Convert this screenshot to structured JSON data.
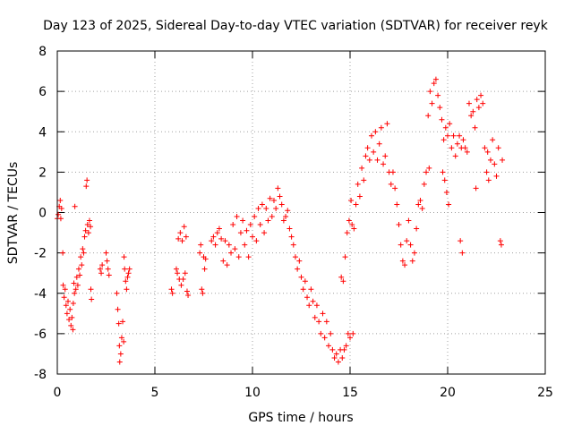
{
  "chart_data": {
    "type": "scatter",
    "title": "Day 123 of 2025, Sidereal Day-to-day VTEC variation (SDTVAR) for receiver reyk",
    "xlabel": "GPS time / hours",
    "ylabel": "SDTVAR / TECUs",
    "xlim": [
      0,
      25
    ],
    "ylim": [
      -8,
      8
    ],
    "xticks": [
      0,
      5,
      10,
      15,
      20,
      25
    ],
    "yticks": [
      -8,
      -6,
      -4,
      -2,
      0,
      2,
      4,
      6,
      8
    ],
    "grid": true,
    "marker": "+",
    "color": "#ff0000",
    "series": [
      {
        "name": "SDTVAR",
        "points": [
          [
            0.0,
            -0.3
          ],
          [
            0.05,
            -0.1
          ],
          [
            0.1,
            0.3
          ],
          [
            0.15,
            0.6
          ],
          [
            0.18,
            -0.3
          ],
          [
            0.22,
            0.2
          ],
          [
            0.28,
            -2.0
          ],
          [
            0.3,
            -3.6
          ],
          [
            0.35,
            -4.2
          ],
          [
            0.4,
            -3.8
          ],
          [
            0.45,
            -4.6
          ],
          [
            0.5,
            -5.0
          ],
          [
            0.55,
            -4.4
          ],
          [
            0.6,
            -5.3
          ],
          [
            0.65,
            -4.8
          ],
          [
            0.7,
            -5.6
          ],
          [
            0.75,
            -5.2
          ],
          [
            0.8,
            -5.8
          ],
          [
            0.82,
            -4.5
          ],
          [
            0.85,
            -3.5
          ],
          [
            0.88,
            -4.0
          ],
          [
            0.9,
            0.3
          ],
          [
            0.95,
            -3.8
          ],
          [
            1.0,
            -3.2
          ],
          [
            1.05,
            -3.6
          ],
          [
            1.1,
            -2.8
          ],
          [
            1.15,
            -3.1
          ],
          [
            1.2,
            -2.2
          ],
          [
            1.25,
            -2.6
          ],
          [
            1.3,
            -1.8
          ],
          [
            1.35,
            -2.0
          ],
          [
            1.4,
            -1.2
          ],
          [
            1.45,
            -0.9
          ],
          [
            1.48,
            1.3
          ],
          [
            1.52,
            1.6
          ],
          [
            1.55,
            -0.6
          ],
          [
            1.6,
            -1.0
          ],
          [
            1.65,
            -0.4
          ],
          [
            1.7,
            -0.7
          ],
          [
            1.72,
            -3.8
          ],
          [
            1.75,
            -4.3
          ],
          [
            2.2,
            -2.8
          ],
          [
            2.25,
            -3.0
          ],
          [
            2.3,
            -2.6
          ],
          [
            2.5,
            -2.0
          ],
          [
            2.55,
            -2.4
          ],
          [
            2.6,
            -2.8
          ],
          [
            2.65,
            -3.1
          ],
          [
            3.05,
            -4.0
          ],
          [
            3.1,
            -4.8
          ],
          [
            3.15,
            -5.5
          ],
          [
            3.18,
            -6.6
          ],
          [
            3.2,
            -7.4
          ],
          [
            3.25,
            -7.0
          ],
          [
            3.3,
            -6.2
          ],
          [
            3.35,
            -5.4
          ],
          [
            3.4,
            -6.4
          ],
          [
            3.42,
            -2.2
          ],
          [
            3.45,
            -2.8
          ],
          [
            3.5,
            -3.4
          ],
          [
            3.55,
            -3.8
          ],
          [
            3.6,
            -3.2
          ],
          [
            3.65,
            -3.0
          ],
          [
            3.7,
            -2.8
          ],
          [
            5.85,
            -3.8
          ],
          [
            5.9,
            -4.0
          ],
          [
            6.1,
            -2.8
          ],
          [
            6.15,
            -3.0
          ],
          [
            6.2,
            -1.3
          ],
          [
            6.25,
            -3.3
          ],
          [
            6.3,
            -1.0
          ],
          [
            6.35,
            -3.6
          ],
          [
            6.4,
            -1.4
          ],
          [
            6.45,
            -3.3
          ],
          [
            6.5,
            -0.7
          ],
          [
            6.55,
            -3.0
          ],
          [
            6.6,
            -1.2
          ],
          [
            6.65,
            -3.9
          ],
          [
            6.7,
            -4.1
          ],
          [
            7.3,
            -2.0
          ],
          [
            7.35,
            -1.6
          ],
          [
            7.4,
            -3.8
          ],
          [
            7.45,
            -4.0
          ],
          [
            7.5,
            -2.2
          ],
          [
            7.55,
            -2.8
          ],
          [
            7.6,
            -2.3
          ],
          [
            7.9,
            -1.4
          ],
          [
            8.0,
            -1.2
          ],
          [
            8.1,
            -1.6
          ],
          [
            8.2,
            -1.0
          ],
          [
            8.3,
            -0.8
          ],
          [
            8.4,
            -1.3
          ],
          [
            8.5,
            -2.4
          ],
          [
            8.6,
            -1.4
          ],
          [
            8.7,
            -2.6
          ],
          [
            8.8,
            -1.6
          ],
          [
            8.9,
            -2.0
          ],
          [
            9.0,
            -0.6
          ],
          [
            9.1,
            -1.8
          ],
          [
            9.2,
            -0.2
          ],
          [
            9.3,
            -2.2
          ],
          [
            9.4,
            -1.0
          ],
          [
            9.5,
            -0.4
          ],
          [
            9.6,
            -1.6
          ],
          [
            9.7,
            -0.9
          ],
          [
            9.8,
            -2.2
          ],
          [
            9.9,
            -0.6
          ],
          [
            10.0,
            -1.2
          ],
          [
            10.1,
            -0.2
          ],
          [
            10.2,
            -1.4
          ],
          [
            10.3,
            0.2
          ],
          [
            10.4,
            -0.6
          ],
          [
            10.5,
            0.4
          ],
          [
            10.6,
            -1.0
          ],
          [
            10.7,
            0.2
          ],
          [
            10.8,
            -0.4
          ],
          [
            10.9,
            0.7
          ],
          [
            11.0,
            -0.2
          ],
          [
            11.1,
            0.6
          ],
          [
            11.2,
            0.2
          ],
          [
            11.3,
            1.2
          ],
          [
            11.4,
            0.8
          ],
          [
            11.5,
            0.4
          ],
          [
            11.6,
            -0.4
          ],
          [
            11.7,
            -0.2
          ],
          [
            11.8,
            0.1
          ],
          [
            11.9,
            -0.8
          ],
          [
            12.0,
            -1.2
          ],
          [
            12.1,
            -1.6
          ],
          [
            12.2,
            -2.2
          ],
          [
            12.3,
            -2.8
          ],
          [
            12.4,
            -2.4
          ],
          [
            12.5,
            -3.2
          ],
          [
            12.6,
            -3.8
          ],
          [
            12.7,
            -3.4
          ],
          [
            12.8,
            -4.2
          ],
          [
            12.9,
            -4.6
          ],
          [
            13.0,
            -3.8
          ],
          [
            13.1,
            -4.4
          ],
          [
            13.2,
            -5.2
          ],
          [
            13.3,
            -4.6
          ],
          [
            13.4,
            -5.4
          ],
          [
            13.5,
            -6.0
          ],
          [
            13.6,
            -5.0
          ],
          [
            13.7,
            -6.2
          ],
          [
            13.8,
            -5.4
          ],
          [
            13.9,
            -6.6
          ],
          [
            14.0,
            -6.0
          ],
          [
            14.1,
            -6.8
          ],
          [
            14.2,
            -7.2
          ],
          [
            14.3,
            -7.0
          ],
          [
            14.4,
            -7.4
          ],
          [
            14.5,
            -6.8
          ],
          [
            14.55,
            -3.2
          ],
          [
            14.6,
            -7.2
          ],
          [
            14.65,
            -3.4
          ],
          [
            14.7,
            -6.8
          ],
          [
            14.75,
            -2.2
          ],
          [
            14.8,
            -6.6
          ],
          [
            14.85,
            -1.0
          ],
          [
            14.9,
            -6.0
          ],
          [
            14.95,
            -0.4
          ],
          [
            15.0,
            -6.2
          ],
          [
            15.05,
            0.6
          ],
          [
            15.1,
            -0.6
          ],
          [
            15.15,
            -6.0
          ],
          [
            15.2,
            -0.8
          ],
          [
            15.3,
            0.4
          ],
          [
            15.4,
            1.4
          ],
          [
            15.5,
            0.8
          ],
          [
            15.6,
            2.2
          ],
          [
            15.7,
            1.6
          ],
          [
            15.8,
            2.8
          ],
          [
            15.9,
            3.2
          ],
          [
            16.0,
            2.6
          ],
          [
            16.1,
            3.8
          ],
          [
            16.2,
            3.0
          ],
          [
            16.3,
            4.0
          ],
          [
            16.4,
            2.6
          ],
          [
            16.5,
            3.4
          ],
          [
            16.6,
            4.2
          ],
          [
            16.7,
            2.4
          ],
          [
            16.8,
            2.8
          ],
          [
            16.9,
            4.4
          ],
          [
            17.0,
            2.0
          ],
          [
            17.1,
            1.4
          ],
          [
            17.2,
            2.0
          ],
          [
            17.3,
            1.2
          ],
          [
            17.4,
            0.4
          ],
          [
            17.5,
            -0.6
          ],
          [
            17.6,
            -1.6
          ],
          [
            17.7,
            -2.4
          ],
          [
            17.8,
            -2.6
          ],
          [
            17.9,
            -1.4
          ],
          [
            18.0,
            -0.4
          ],
          [
            18.1,
            -1.6
          ],
          [
            18.2,
            -2.4
          ],
          [
            18.3,
            -2.0
          ],
          [
            18.4,
            -0.8
          ],
          [
            18.5,
            0.4
          ],
          [
            18.6,
            0.6
          ],
          [
            18.7,
            0.2
          ],
          [
            18.8,
            1.4
          ],
          [
            18.9,
            2.0
          ],
          [
            19.0,
            4.8
          ],
          [
            19.05,
            2.2
          ],
          [
            19.1,
            6.0
          ],
          [
            19.2,
            5.4
          ],
          [
            19.3,
            6.4
          ],
          [
            19.4,
            6.6
          ],
          [
            19.5,
            5.8
          ],
          [
            19.6,
            5.2
          ],
          [
            19.7,
            4.6
          ],
          [
            19.75,
            2.0
          ],
          [
            19.8,
            3.6
          ],
          [
            19.85,
            1.6
          ],
          [
            19.9,
            4.2
          ],
          [
            19.95,
            1.0
          ],
          [
            20.0,
            3.8
          ],
          [
            20.05,
            0.4
          ],
          [
            20.1,
            4.4
          ],
          [
            20.2,
            3.2
          ],
          [
            20.3,
            3.8
          ],
          [
            20.4,
            2.8
          ],
          [
            20.5,
            3.4
          ],
          [
            20.6,
            3.8
          ],
          [
            20.65,
            -1.4
          ],
          [
            20.7,
            3.2
          ],
          [
            20.75,
            -2.0
          ],
          [
            20.8,
            3.6
          ],
          [
            20.9,
            3.2
          ],
          [
            21.0,
            3.0
          ],
          [
            21.1,
            5.4
          ],
          [
            21.2,
            4.8
          ],
          [
            21.3,
            5.0
          ],
          [
            21.4,
            4.2
          ],
          [
            21.45,
            1.2
          ],
          [
            21.5,
            5.6
          ],
          [
            21.6,
            5.2
          ],
          [
            21.7,
            5.8
          ],
          [
            21.8,
            5.4
          ],
          [
            21.9,
            3.2
          ],
          [
            22.0,
            2.0
          ],
          [
            22.05,
            3.0
          ],
          [
            22.1,
            1.6
          ],
          [
            22.2,
            2.6
          ],
          [
            22.3,
            3.6
          ],
          [
            22.4,
            2.4
          ],
          [
            22.5,
            1.8
          ],
          [
            22.6,
            3.2
          ],
          [
            22.7,
            -1.4
          ],
          [
            22.75,
            -1.6
          ],
          [
            22.8,
            2.6
          ]
        ]
      }
    ]
  }
}
